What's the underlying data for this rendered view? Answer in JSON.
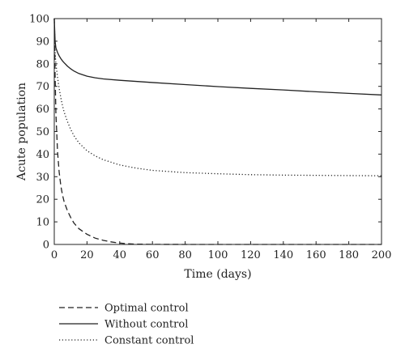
{
  "chart_data": {
    "type": "line",
    "title": "",
    "xlabel": "Time (days)",
    "ylabel": "Acute population",
    "xlim": [
      0,
      200
    ],
    "ylim": [
      0,
      100
    ],
    "xticks": [
      0,
      20,
      40,
      60,
      80,
      100,
      120,
      140,
      160,
      180,
      200
    ],
    "yticks": [
      0,
      10,
      20,
      30,
      40,
      50,
      60,
      70,
      80,
      90,
      100
    ],
    "grid": false,
    "legend_position": "bottom-left",
    "series": [
      {
        "name": "Optimal control",
        "style": "dashed",
        "color": "#222222",
        "x": [
          0,
          0.5,
          1,
          2,
          3,
          4,
          5,
          6,
          8,
          10,
          12,
          15,
          20,
          25,
          30,
          35,
          40,
          45,
          50,
          60,
          70,
          80,
          100,
          120,
          140,
          160,
          180,
          200
        ],
        "y": [
          100,
          75,
          58,
          41,
          32,
          26,
          22,
          19,
          15,
          12,
          9.5,
          7,
          4.5,
          2.8,
          1.8,
          1.1,
          0.6,
          0.3,
          0.15,
          0.05,
          0.02,
          0.01,
          0,
          0,
          0,
          0,
          0,
          0
        ]
      },
      {
        "name": "Without control",
        "style": "solid",
        "color": "#222222",
        "x": [
          0,
          0.5,
          1,
          2,
          3,
          4,
          5,
          6,
          8,
          10,
          12,
          15,
          20,
          25,
          30,
          40,
          50,
          60,
          80,
          100,
          120,
          140,
          160,
          180,
          200
        ],
        "y": [
          100,
          90,
          87,
          85,
          83.5,
          82.3,
          81.3,
          80.5,
          79,
          77.8,
          76.8,
          75.7,
          74.5,
          73.8,
          73.3,
          72.7,
          72.2,
          71.7,
          70.8,
          69.9,
          69.1,
          68.4,
          67.6,
          66.9,
          66.2
        ]
      },
      {
        "name": "Constant control",
        "style": "dotted",
        "color": "#222222",
        "x": [
          0,
          0.5,
          1,
          2,
          3,
          4,
          5,
          6,
          8,
          10,
          12,
          15,
          20,
          25,
          30,
          40,
          50,
          60,
          80,
          100,
          120,
          140,
          160,
          180,
          200
        ],
        "y": [
          100,
          85,
          80,
          74,
          69,
          65,
          61.5,
          58.7,
          54.5,
          51,
          48.2,
          45,
          41.5,
          39.2,
          37.5,
          35.2,
          33.8,
          32.8,
          31.8,
          31.3,
          30.9,
          30.7,
          30.6,
          30.5,
          30.4
        ]
      }
    ]
  }
}
